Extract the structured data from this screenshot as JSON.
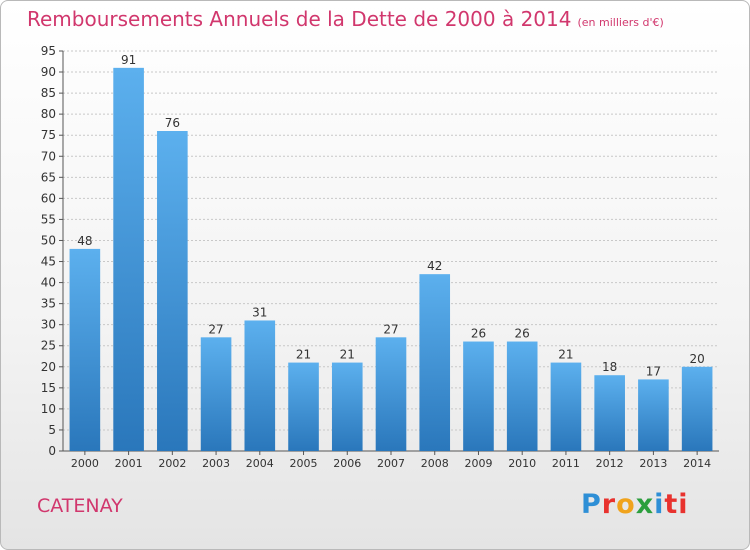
{
  "header": {
    "title": "Remboursements Annuels de la Dette de 2000 à 2014",
    "unit": "(en milliers d'€)"
  },
  "footer": {
    "city": "CATENAY",
    "logo_letters": [
      "P",
      "r",
      "o",
      "x",
      "i",
      "ti"
    ]
  },
  "chart_data": {
    "type": "bar",
    "title": "Remboursements Annuels de la Dette de 2000 à 2014",
    "subtitle": "(en milliers d'€)",
    "categories": [
      "2000",
      "2001",
      "2002",
      "2003",
      "2004",
      "2005",
      "2006",
      "2007",
      "2008",
      "2009",
      "2010",
      "2011",
      "2012",
      "2013",
      "2014"
    ],
    "values": [
      48,
      91,
      76,
      27,
      31,
      21,
      21,
      27,
      42,
      26,
      26,
      21,
      18,
      17,
      20
    ],
    "ylim": [
      0,
      95
    ],
    "yticks": [
      0,
      5,
      10,
      15,
      20,
      25,
      30,
      35,
      40,
      45,
      50,
      55,
      60,
      65,
      70,
      75,
      80,
      85,
      90,
      95
    ],
    "grid": true,
    "colors": {
      "bar_top": "#5cb0ee",
      "bar_bottom": "#2a77bb",
      "grid": "#c8c8c8"
    }
  }
}
